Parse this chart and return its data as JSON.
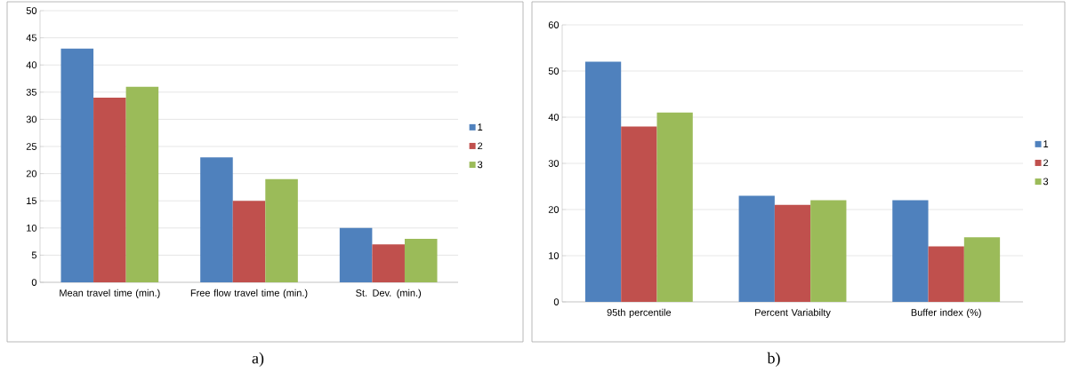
{
  "chart_data": [
    {
      "type": "bar",
      "categories": [
        "Mean travel time (min.)",
        "Free flow travel time (min.)",
        "St. Dev. (min.)"
      ],
      "series": [
        {
          "name": "1",
          "color": "#4f81bd",
          "values": [
            43,
            23,
            10
          ]
        },
        {
          "name": "2",
          "color": "#c0504d",
          "values": [
            34,
            15,
            7
          ]
        },
        {
          "name": "3",
          "color": "#9bbb59",
          "values": [
            36,
            19,
            8
          ]
        }
      ],
      "ylim": [
        0,
        50
      ],
      "yticks": [
        0,
        5,
        10,
        15,
        20,
        25,
        30,
        35,
        40,
        45,
        50
      ],
      "grid": "y",
      "legend": "right",
      "annotations": [
        "a)"
      ]
    },
    {
      "type": "bar",
      "categories": [
        "95th percentile",
        "Percent Variabilty",
        "Buffer index (%)"
      ],
      "series": [
        {
          "name": "1",
          "color": "#4f81bd",
          "values": [
            52,
            23,
            22
          ]
        },
        {
          "name": "2",
          "color": "#c0504d",
          "values": [
            38,
            21,
            12
          ]
        },
        {
          "name": "3",
          "color": "#9bbb59",
          "values": [
            41,
            22,
            14
          ]
        }
      ],
      "ylim": [
        0,
        60
      ],
      "yticks": [
        0,
        10,
        20,
        30,
        40,
        50,
        60
      ],
      "grid": "y",
      "legend": "right",
      "annotations": [
        "b)"
      ]
    }
  ]
}
